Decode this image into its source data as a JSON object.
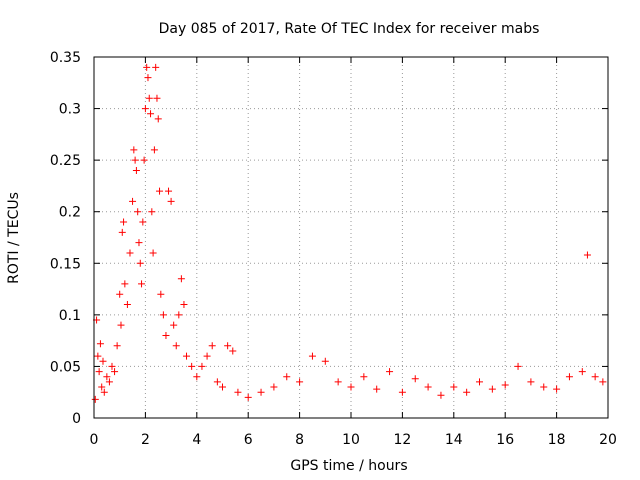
{
  "chart_data": {
    "type": "scatter",
    "title": "Day 085 of 2017, Rate Of TEC Index for receiver mabs",
    "xlabel": "GPS time / hours",
    "ylabel": "ROTI / TECUs",
    "xlim": [
      0,
      20
    ],
    "ylim": [
      0,
      0.35
    ],
    "xticks": [
      "0",
      "2",
      "4",
      "6",
      "8",
      "10",
      "12",
      "14",
      "16",
      "18",
      "20"
    ],
    "yticks": [
      "0",
      "0.05",
      "0.1",
      "0.15",
      "0.2",
      "0.25",
      "0.3",
      "0.35"
    ],
    "grid": true,
    "marker": "+",
    "series": [
      {
        "name": "ROTI",
        "color": "#ff0000",
        "points": [
          [
            0.05,
            0.018
          ],
          [
            0.1,
            0.095
          ],
          [
            0.15,
            0.06
          ],
          [
            0.2,
            0.045
          ],
          [
            0.25,
            0.072
          ],
          [
            0.3,
            0.03
          ],
          [
            0.35,
            0.055
          ],
          [
            0.4,
            0.025
          ],
          [
            0.5,
            0.04
          ],
          [
            0.6,
            0.035
          ],
          [
            0.7,
            0.05
          ],
          [
            0.8,
            0.045
          ],
          [
            0.9,
            0.07
          ],
          [
            1.0,
            0.12
          ],
          [
            1.05,
            0.09
          ],
          [
            1.1,
            0.18
          ],
          [
            1.15,
            0.19
          ],
          [
            1.2,
            0.13
          ],
          [
            1.3,
            0.11
          ],
          [
            1.4,
            0.16
          ],
          [
            1.5,
            0.21
          ],
          [
            1.55,
            0.26
          ],
          [
            1.6,
            0.25
          ],
          [
            1.65,
            0.24
          ],
          [
            1.7,
            0.2
          ],
          [
            1.75,
            0.17
          ],
          [
            1.8,
            0.15
          ],
          [
            1.85,
            0.13
          ],
          [
            1.9,
            0.19
          ],
          [
            1.95,
            0.25
          ],
          [
            2.0,
            0.3
          ],
          [
            2.05,
            0.34
          ],
          [
            2.1,
            0.33
          ],
          [
            2.15,
            0.31
          ],
          [
            2.2,
            0.295
          ],
          [
            2.25,
            0.2
          ],
          [
            2.3,
            0.16
          ],
          [
            2.35,
            0.26
          ],
          [
            2.4,
            0.34
          ],
          [
            2.45,
            0.31
          ],
          [
            2.5,
            0.29
          ],
          [
            2.55,
            0.22
          ],
          [
            2.6,
            0.12
          ],
          [
            2.7,
            0.1
          ],
          [
            2.8,
            0.08
          ],
          [
            2.9,
            0.22
          ],
          [
            3.0,
            0.21
          ],
          [
            3.1,
            0.09
          ],
          [
            3.2,
            0.07
          ],
          [
            3.3,
            0.1
          ],
          [
            3.4,
            0.135
          ],
          [
            3.5,
            0.11
          ],
          [
            3.6,
            0.06
          ],
          [
            3.8,
            0.05
          ],
          [
            4.0,
            0.04
          ],
          [
            4.2,
            0.05
          ],
          [
            4.4,
            0.06
          ],
          [
            4.6,
            0.07
          ],
          [
            4.8,
            0.035
          ],
          [
            5.0,
            0.03
          ],
          [
            5.2,
            0.07
          ],
          [
            5.4,
            0.065
          ],
          [
            5.6,
            0.025
          ],
          [
            6.0,
            0.02
          ],
          [
            6.5,
            0.025
          ],
          [
            7.0,
            0.03
          ],
          [
            7.5,
            0.04
          ],
          [
            8.0,
            0.035
          ],
          [
            8.5,
            0.06
          ],
          [
            9.0,
            0.055
          ],
          [
            9.5,
            0.035
          ],
          [
            10.0,
            0.03
          ],
          [
            10.5,
            0.04
          ],
          [
            11.0,
            0.028
          ],
          [
            11.5,
            0.045
          ],
          [
            12.0,
            0.025
          ],
          [
            12.5,
            0.038
          ],
          [
            13.0,
            0.03
          ],
          [
            13.5,
            0.022
          ],
          [
            14.0,
            0.03
          ],
          [
            14.5,
            0.025
          ],
          [
            15.0,
            0.035
          ],
          [
            15.5,
            0.028
          ],
          [
            16.0,
            0.032
          ],
          [
            16.5,
            0.05
          ],
          [
            17.0,
            0.035
          ],
          [
            17.5,
            0.03
          ],
          [
            18.0,
            0.028
          ],
          [
            18.5,
            0.04
          ],
          [
            19.0,
            0.045
          ],
          [
            19.2,
            0.158
          ],
          [
            19.5,
            0.04
          ],
          [
            19.8,
            0.035
          ]
        ]
      }
    ]
  }
}
